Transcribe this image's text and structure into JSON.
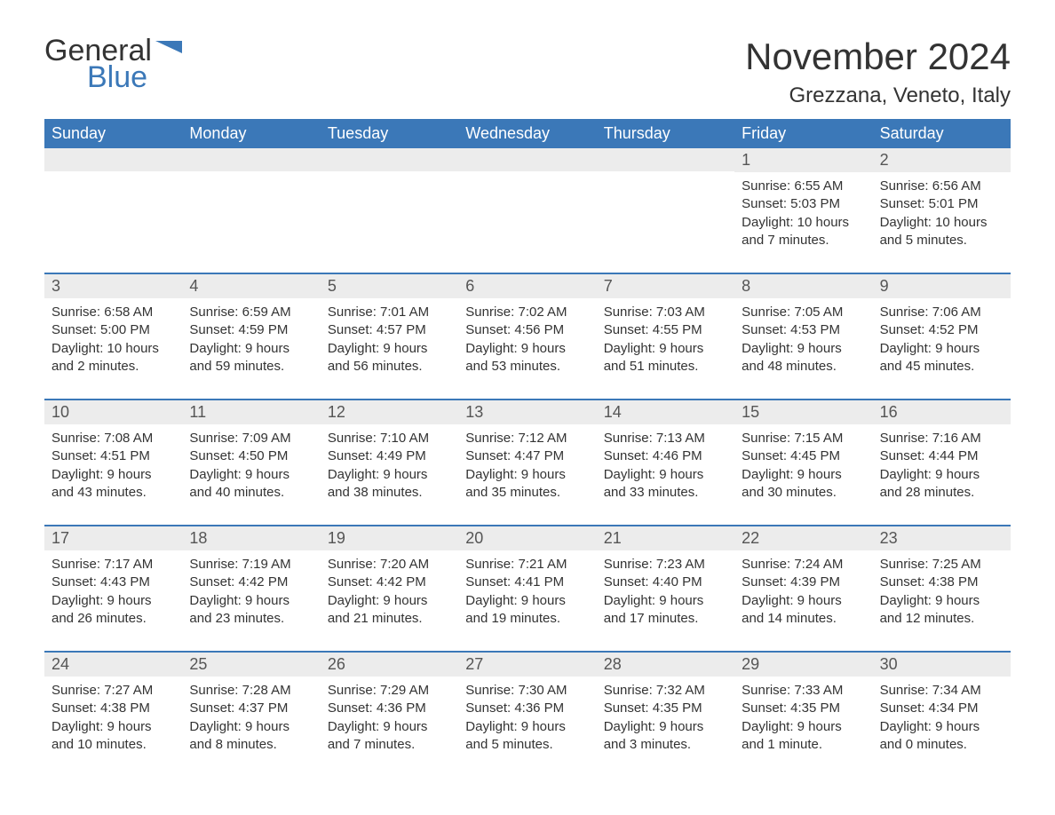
{
  "logo": {
    "text1": "General",
    "text2": "Blue",
    "shape_color": "#3b78b8"
  },
  "title": "November 2024",
  "location": "Grezzana, Veneto, Italy",
  "colors": {
    "header_bg": "#3b78b8",
    "header_text": "#ffffff",
    "row_accent": "#3b78b8",
    "day_num_bg": "#ececec",
    "text": "#333333"
  },
  "day_headers": [
    "Sunday",
    "Monday",
    "Tuesday",
    "Wednesday",
    "Thursday",
    "Friday",
    "Saturday"
  ],
  "weeks": [
    [
      {
        "empty": true
      },
      {
        "empty": true
      },
      {
        "empty": true
      },
      {
        "empty": true
      },
      {
        "empty": true
      },
      {
        "num": "1",
        "sunrise": "Sunrise: 6:55 AM",
        "sunset": "Sunset: 5:03 PM",
        "daylight": "Daylight: 10 hours and 7 minutes."
      },
      {
        "num": "2",
        "sunrise": "Sunrise: 6:56 AM",
        "sunset": "Sunset: 5:01 PM",
        "daylight": "Daylight: 10 hours and 5 minutes."
      }
    ],
    [
      {
        "num": "3",
        "sunrise": "Sunrise: 6:58 AM",
        "sunset": "Sunset: 5:00 PM",
        "daylight": "Daylight: 10 hours and 2 minutes."
      },
      {
        "num": "4",
        "sunrise": "Sunrise: 6:59 AM",
        "sunset": "Sunset: 4:59 PM",
        "daylight": "Daylight: 9 hours and 59 minutes."
      },
      {
        "num": "5",
        "sunrise": "Sunrise: 7:01 AM",
        "sunset": "Sunset: 4:57 PM",
        "daylight": "Daylight: 9 hours and 56 minutes."
      },
      {
        "num": "6",
        "sunrise": "Sunrise: 7:02 AM",
        "sunset": "Sunset: 4:56 PM",
        "daylight": "Daylight: 9 hours and 53 minutes."
      },
      {
        "num": "7",
        "sunrise": "Sunrise: 7:03 AM",
        "sunset": "Sunset: 4:55 PM",
        "daylight": "Daylight: 9 hours and 51 minutes."
      },
      {
        "num": "8",
        "sunrise": "Sunrise: 7:05 AM",
        "sunset": "Sunset: 4:53 PM",
        "daylight": "Daylight: 9 hours and 48 minutes."
      },
      {
        "num": "9",
        "sunrise": "Sunrise: 7:06 AM",
        "sunset": "Sunset: 4:52 PM",
        "daylight": "Daylight: 9 hours and 45 minutes."
      }
    ],
    [
      {
        "num": "10",
        "sunrise": "Sunrise: 7:08 AM",
        "sunset": "Sunset: 4:51 PM",
        "daylight": "Daylight: 9 hours and 43 minutes."
      },
      {
        "num": "11",
        "sunrise": "Sunrise: 7:09 AM",
        "sunset": "Sunset: 4:50 PM",
        "daylight": "Daylight: 9 hours and 40 minutes."
      },
      {
        "num": "12",
        "sunrise": "Sunrise: 7:10 AM",
        "sunset": "Sunset: 4:49 PM",
        "daylight": "Daylight: 9 hours and 38 minutes."
      },
      {
        "num": "13",
        "sunrise": "Sunrise: 7:12 AM",
        "sunset": "Sunset: 4:47 PM",
        "daylight": "Daylight: 9 hours and 35 minutes."
      },
      {
        "num": "14",
        "sunrise": "Sunrise: 7:13 AM",
        "sunset": "Sunset: 4:46 PM",
        "daylight": "Daylight: 9 hours and 33 minutes."
      },
      {
        "num": "15",
        "sunrise": "Sunrise: 7:15 AM",
        "sunset": "Sunset: 4:45 PM",
        "daylight": "Daylight: 9 hours and 30 minutes."
      },
      {
        "num": "16",
        "sunrise": "Sunrise: 7:16 AM",
        "sunset": "Sunset: 4:44 PM",
        "daylight": "Daylight: 9 hours and 28 minutes."
      }
    ],
    [
      {
        "num": "17",
        "sunrise": "Sunrise: 7:17 AM",
        "sunset": "Sunset: 4:43 PM",
        "daylight": "Daylight: 9 hours and 26 minutes."
      },
      {
        "num": "18",
        "sunrise": "Sunrise: 7:19 AM",
        "sunset": "Sunset: 4:42 PM",
        "daylight": "Daylight: 9 hours and 23 minutes."
      },
      {
        "num": "19",
        "sunrise": "Sunrise: 7:20 AM",
        "sunset": "Sunset: 4:42 PM",
        "daylight": "Daylight: 9 hours and 21 minutes."
      },
      {
        "num": "20",
        "sunrise": "Sunrise: 7:21 AM",
        "sunset": "Sunset: 4:41 PM",
        "daylight": "Daylight: 9 hours and 19 minutes."
      },
      {
        "num": "21",
        "sunrise": "Sunrise: 7:23 AM",
        "sunset": "Sunset: 4:40 PM",
        "daylight": "Daylight: 9 hours and 17 minutes."
      },
      {
        "num": "22",
        "sunrise": "Sunrise: 7:24 AM",
        "sunset": "Sunset: 4:39 PM",
        "daylight": "Daylight: 9 hours and 14 minutes."
      },
      {
        "num": "23",
        "sunrise": "Sunrise: 7:25 AM",
        "sunset": "Sunset: 4:38 PM",
        "daylight": "Daylight: 9 hours and 12 minutes."
      }
    ],
    [
      {
        "num": "24",
        "sunrise": "Sunrise: 7:27 AM",
        "sunset": "Sunset: 4:38 PM",
        "daylight": "Daylight: 9 hours and 10 minutes."
      },
      {
        "num": "25",
        "sunrise": "Sunrise: 7:28 AM",
        "sunset": "Sunset: 4:37 PM",
        "daylight": "Daylight: 9 hours and 8 minutes."
      },
      {
        "num": "26",
        "sunrise": "Sunrise: 7:29 AM",
        "sunset": "Sunset: 4:36 PM",
        "daylight": "Daylight: 9 hours and 7 minutes."
      },
      {
        "num": "27",
        "sunrise": "Sunrise: 7:30 AM",
        "sunset": "Sunset: 4:36 PM",
        "daylight": "Daylight: 9 hours and 5 minutes."
      },
      {
        "num": "28",
        "sunrise": "Sunrise: 7:32 AM",
        "sunset": "Sunset: 4:35 PM",
        "daylight": "Daylight: 9 hours and 3 minutes."
      },
      {
        "num": "29",
        "sunrise": "Sunrise: 7:33 AM",
        "sunset": "Sunset: 4:35 PM",
        "daylight": "Daylight: 9 hours and 1 minute."
      },
      {
        "num": "30",
        "sunrise": "Sunrise: 7:34 AM",
        "sunset": "Sunset: 4:34 PM",
        "daylight": "Daylight: 9 hours and 0 minutes."
      }
    ]
  ]
}
